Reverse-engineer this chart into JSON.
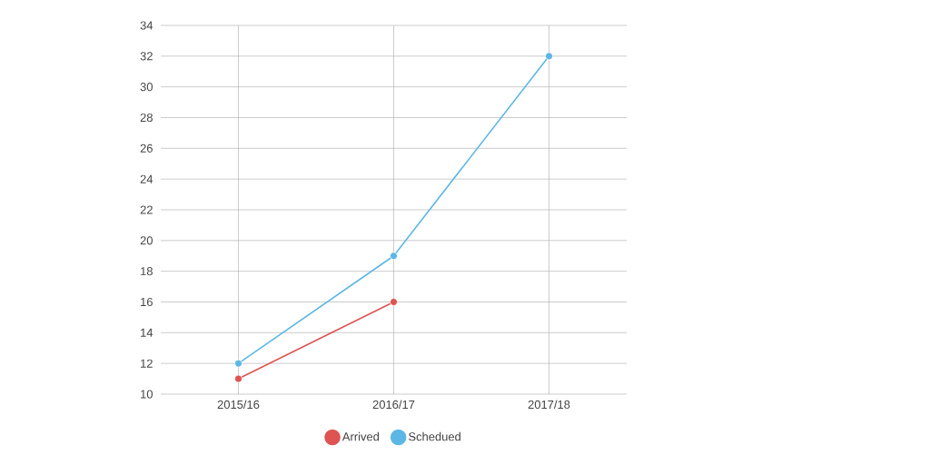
{
  "chart_data": {
    "type": "line",
    "categories": [
      "2015/16",
      "2016/17",
      "2017/18"
    ],
    "series": [
      {
        "name": "Arrived",
        "color": "#dd5452",
        "values": [
          11,
          16,
          null
        ]
      },
      {
        "name": "Schedued",
        "color": "#5db7e6",
        "values": [
          12,
          19,
          32
        ]
      }
    ],
    "ylim": [
      10,
      34
    ],
    "yticks": [
      10,
      12,
      14,
      16,
      18,
      20,
      22,
      24,
      26,
      28,
      30,
      32,
      34
    ],
    "grid": true,
    "legend": "bottom",
    "marker": "circle",
    "line_style": "solid"
  }
}
